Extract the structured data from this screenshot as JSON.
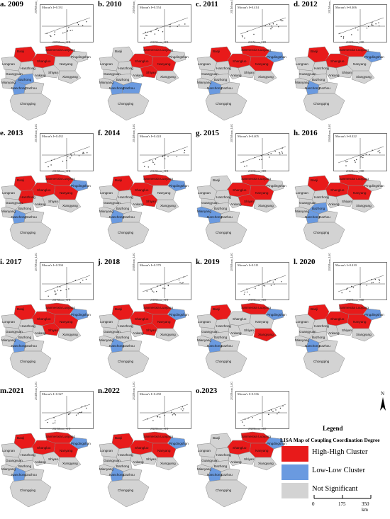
{
  "colors": {
    "high_high": "#e81a1a",
    "low_low": "#6a9ae0",
    "not_significant": "#d3d3d3",
    "halo": "#f4cce4",
    "border": "#8a8a8a"
  },
  "scatter_axis_prefixes": {
    "y_suffix": "Moran_LAG",
    "x_suffix": "Moran_STD"
  },
  "region_labels": {
    "baoji": "Baoji",
    "hanzhong": "Hanzhong",
    "ankang": "Ankang",
    "shangluo": "Shangluo",
    "sanmenxia_luoyang": "Sanmenxia Luoyang",
    "nanyang": "Nanyang",
    "pingdingshan": "Pingdingshan",
    "shiyan": "Shiyan",
    "xiangyang": "Xiangyang",
    "longnan": "Longnan",
    "guangyuan": "Guangyuan",
    "bazhong": "Bazhong",
    "mianyang": "Mianyang",
    "nanchong": "Nanchong",
    "dazhou": "Dazhou",
    "chongqing": "Chongqing"
  },
  "panels": [
    {
      "label": "a. 2009",
      "year": "2009",
      "moran": "Moran's I=0.331",
      "hh": [
        "shangluo",
        "baoji",
        "sanmenxia_luoyang"
      ],
      "ll": [
        "nanchong",
        "bazhong"
      ]
    },
    {
      "label": "b. 2010",
      "year": "2010",
      "moran": "Moran's I=0.354",
      "hh": [
        "shangluo",
        "sanmenxia_luoyang",
        "nanyang",
        "shiyan"
      ],
      "ll": [
        "nanchong",
        "dazhou"
      ]
    },
    {
      "label": "c. 2011",
      "year": "2011",
      "moran": "Moran's I=0.414",
      "hh": [
        "shangluo",
        "sanmenxia_luoyang",
        "baoji",
        "nanyang"
      ],
      "ll": [
        "nanchong",
        "pingdingshan"
      ]
    },
    {
      "label": "d. 2012",
      "year": "2012",
      "moran": "Moran's I=0.406",
      "hh": [
        "shangluo",
        "baoji",
        "sanmenxia_luoyang"
      ],
      "ll": [
        "pingdingshan",
        "nanchong"
      ]
    },
    {
      "label": "e. 2013",
      "year": "2013",
      "moran": "Moran's I=0.432",
      "hh": [
        "shangluo",
        "baoji",
        "sanmenxia_luoyang",
        "nanyang",
        "hanzhong"
      ],
      "ll": [
        "pingdingshan",
        "nanchong"
      ]
    },
    {
      "label": "f. 2014",
      "year": "2014",
      "moran": "Moran's I=0.424",
      "hh": [
        "shangluo",
        "baoji",
        "sanmenxia_luoyang",
        "shiyan"
      ],
      "ll": [
        "pingdingshan",
        "nanchong"
      ]
    },
    {
      "label": "g. 2015",
      "year": "2015",
      "moran": "Moran's I=0.405",
      "hh": [
        "shangluo",
        "sanmenxia_luoyang",
        "nanyang",
        "shiyan"
      ],
      "ll": [
        "mianyang",
        "nanchong"
      ]
    },
    {
      "label": "h. 2016",
      "year": "2016",
      "moran": "Moran's I=0.422",
      "hh": [
        "shangluo",
        "baoji",
        "sanmenxia_luoyang",
        "nanyang"
      ],
      "ll": [
        "nanchong",
        "bazhong"
      ]
    },
    {
      "label": "i. 2017",
      "year": "2017",
      "moran": "Moran's I=0.394",
      "hh": [
        "shangluo",
        "baoji",
        "sanmenxia_luoyang",
        "nanyang",
        "shiyan"
      ],
      "ll": [
        "nanchong",
        "pingdingshan"
      ]
    },
    {
      "label": "j. 2018",
      "year": "2018",
      "moran": "Moran's I=0.379",
      "hh": [
        "shangluo",
        "baoji",
        "sanmenxia_luoyang",
        "nanyang",
        "shiyan"
      ],
      "ll": [
        "nanchong",
        "pingdingshan"
      ]
    },
    {
      "label": "k. 2019",
      "year": "2019",
      "moran": "Moran's I=0.311",
      "hh": [
        "baoji",
        "sanmenxia_luoyang",
        "xiangyang"
      ],
      "ll": [
        "pingdingshan",
        "nanchong"
      ]
    },
    {
      "label": "l. 2020",
      "year": "2020",
      "moran": "Moran's I=0.410",
      "hh": [
        "shangluo",
        "baoji",
        "sanmenxia_luoyang",
        "nanyang"
      ],
      "ll": [
        "pingdingshan",
        "nanchong"
      ]
    },
    {
      "label": "m.2021",
      "year": "2021",
      "moran": "Moran's I=0.327",
      "hh": [
        "shangluo",
        "baoji",
        "sanmenxia_luoyang",
        "nanyang"
      ],
      "ll": [
        "pingdingshan",
        "nanchong"
      ]
    },
    {
      "label": "n.2022",
      "year": "2022",
      "moran": "Moran's I=0.458",
      "hh": [
        "shangluo",
        "baoji",
        "sanmenxia_luoyang",
        "nanyang"
      ],
      "ll": [
        "pingdingshan",
        "nanchong"
      ]
    },
    {
      "label": "o.2023",
      "year": "2023",
      "moran": "Moran's I=0.336",
      "hh": [
        "shangluo",
        "sanmenxia_luoyang",
        "nanyang"
      ],
      "ll": [
        "pingdingshan",
        "nanchong"
      ]
    }
  ],
  "legend": {
    "title": "Legend",
    "subtitle": "LISA Map of Coupling Coordination Degree",
    "items": [
      {
        "label": "High-High Cluster",
        "color": "#e81a1a"
      },
      {
        "label": "Low-Low Cluster",
        "color": "#6a9ae0"
      },
      {
        "label": "Not Significant",
        "color": "#d3d3d3"
      }
    ]
  },
  "north_arrow": "N",
  "scale_bar": {
    "ticks": [
      "0",
      "175",
      "350 km"
    ]
  }
}
